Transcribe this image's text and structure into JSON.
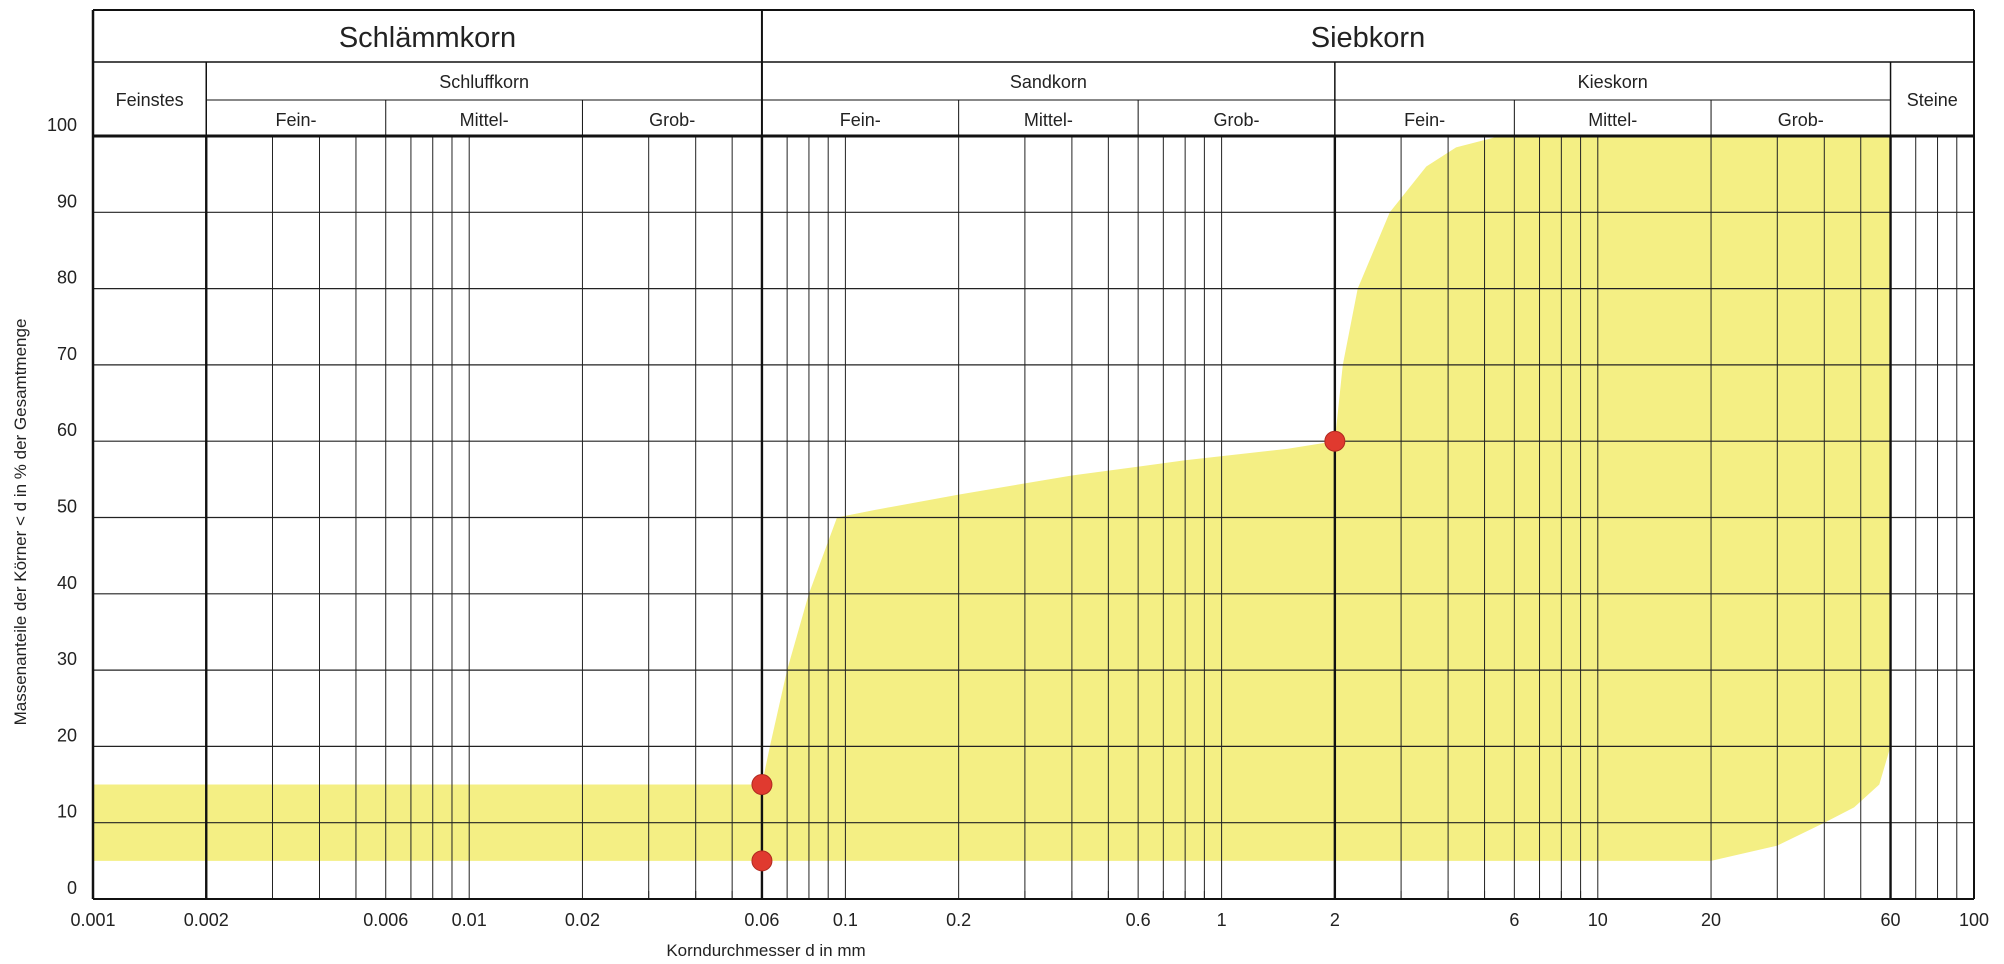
{
  "chart_data": {
    "type": "area",
    "title": "",
    "xlabel": "Korndurchmesser d in mm",
    "ylabel": "Massenanteile der Körner < d in % der Gesamtmenge",
    "x_scale": "log",
    "xlim": [
      0.001,
      100
    ],
    "ylim": [
      0,
      100
    ],
    "grid": true,
    "x_ticks": [
      "0.001",
      "0.002",
      "0.006",
      "0.01",
      "0.02",
      "0.06",
      "0.1",
      "0.2",
      "0.6",
      "1",
      "2",
      "6",
      "10",
      "20",
      "60",
      "100"
    ],
    "y_ticks": [
      "0",
      "10",
      "20",
      "30",
      "40",
      "50",
      "60",
      "70",
      "80",
      "90",
      "100"
    ],
    "header": {
      "top": [
        "Schlämmkorn",
        "Siebkorn"
      ],
      "groups": [
        "Feinstes",
        "Schluffkorn",
        "Sandkorn",
        "Kieskorn",
        "Steine"
      ],
      "subgroups": [
        "Fein-",
        "Mittel-",
        "Grob-",
        "Fein-",
        "Mittel-",
        "Grob-",
        "Fein-",
        "Mittel-",
        "Grob-"
      ]
    },
    "band": {
      "fill_color": "#f4ef84",
      "upper": [
        [
          0.001,
          15
        ],
        [
          0.06,
          15
        ],
        [
          0.063,
          20
        ],
        [
          0.07,
          30
        ],
        [
          0.08,
          40
        ],
        [
          0.095,
          50
        ],
        [
          0.12,
          51
        ],
        [
          0.2,
          53
        ],
        [
          0.4,
          55.5
        ],
        [
          0.8,
          57.5
        ],
        [
          1.5,
          59
        ],
        [
          2,
          60
        ],
        [
          2.1,
          70
        ],
        [
          2.3,
          80
        ],
        [
          2.8,
          90
        ],
        [
          3.5,
          96
        ],
        [
          4.2,
          98.5
        ],
        [
          5.5,
          100
        ],
        [
          60,
          100
        ]
      ],
      "lower": [
        [
          60,
          20
        ],
        [
          56,
          15
        ],
        [
          48,
          12
        ],
        [
          40,
          10
        ],
        [
          30,
          7
        ],
        [
          20,
          5
        ],
        [
          2,
          5
        ],
        [
          0.06,
          5
        ],
        [
          0.001,
          5
        ]
      ]
    },
    "points": [
      {
        "x": 0.06,
        "y": 15
      },
      {
        "x": 0.06,
        "y": 5
      },
      {
        "x": 2,
        "y": 60
      }
    ],
    "point_color": "#e03a2f"
  }
}
